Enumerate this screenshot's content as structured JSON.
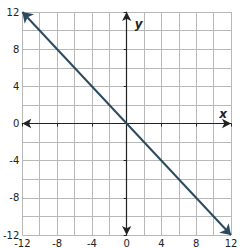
{
  "chart_data": {
    "type": "line",
    "x": [
      -12,
      12
    ],
    "values": [
      12,
      -12
    ],
    "xlim": [
      -12,
      12
    ],
    "ylim": [
      -12,
      12
    ],
    "xticks": [
      -12,
      -8,
      -4,
      0,
      4,
      8,
      12
    ],
    "yticks": [
      -12,
      -8,
      -4,
      0,
      4,
      8,
      12
    ],
    "x_label": "x",
    "y_label": "y",
    "grid": true,
    "color": "#2b4a5e",
    "marker": "arrow"
  }
}
